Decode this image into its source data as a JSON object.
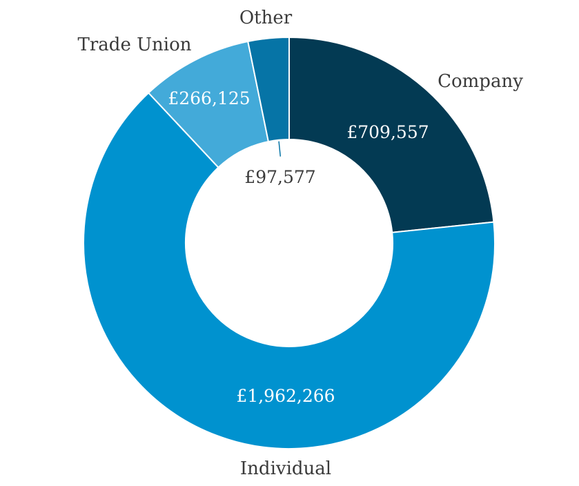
{
  "chart_data": {
    "type": "pie",
    "variant": "donut",
    "categories": [
      "Company",
      "Individual",
      "Trade Union",
      "Other"
    ],
    "values": [
      709557,
      1962266,
      266125,
      97577
    ],
    "value_labels": [
      "£709,557",
      "£1,962,266",
      "£266,125",
      "£97,577"
    ],
    "colors": [
      "#033a53",
      "#0092cf",
      "#43aad9",
      "#0674a6"
    ],
    "value_label_colors": [
      "#ffffff",
      "#ffffff",
      "#ffffff",
      "#3a3a3a"
    ],
    "title": "",
    "legend": "none"
  }
}
